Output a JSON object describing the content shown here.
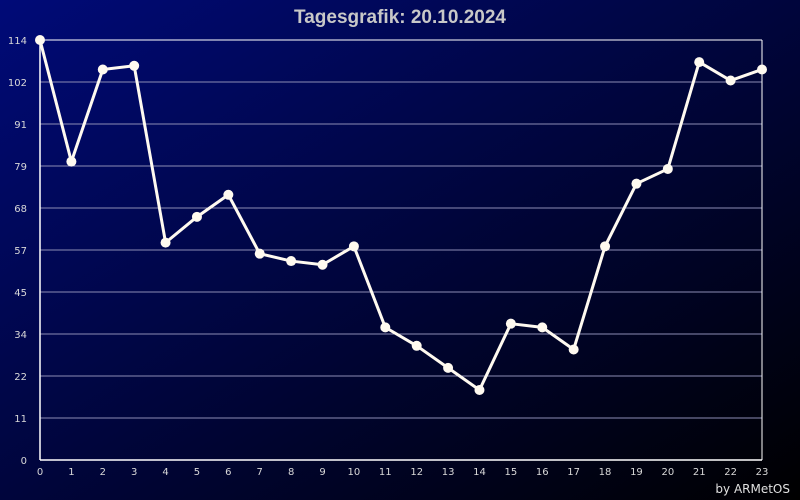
{
  "chart_data": {
    "type": "line",
    "title": "Tagesgrafik: 20.10.2024",
    "xlabel": "",
    "ylabel": "",
    "x": [
      0,
      1,
      2,
      3,
      4,
      5,
      6,
      7,
      8,
      9,
      10,
      11,
      12,
      13,
      14,
      15,
      16,
      17,
      18,
      19,
      20,
      21,
      22,
      23
    ],
    "series": [
      {
        "values": [
          114,
          81,
          106,
          107,
          59,
          66,
          72,
          56,
          54,
          53,
          58,
          36,
          31,
          25,
          19,
          37,
          36,
          30,
          58,
          75,
          79,
          108,
          103,
          106
        ]
      }
    ],
    "yticks": [
      "0",
      "11",
      "22",
      "34",
      "45",
      "57",
      "68",
      "79",
      "91",
      "102",
      "114"
    ],
    "xticks": [
      "0",
      "1",
      "2",
      "3",
      "4",
      "5",
      "6",
      "7",
      "8",
      "9",
      "10",
      "11",
      "12",
      "13",
      "14",
      "15",
      "16",
      "17",
      "18",
      "19",
      "20",
      "21",
      "22",
      "23"
    ],
    "ylim": [
      0,
      114
    ],
    "xlim": [
      0,
      23
    ],
    "grid": true,
    "colors": {
      "background_start": "#000a78",
      "background_end": "#000000",
      "line": "#fffaf0",
      "grid": "#8c8cb4",
      "axis": "#ffffff",
      "title": "#c8c8c8"
    }
  },
  "credit": "by ARMetOS"
}
